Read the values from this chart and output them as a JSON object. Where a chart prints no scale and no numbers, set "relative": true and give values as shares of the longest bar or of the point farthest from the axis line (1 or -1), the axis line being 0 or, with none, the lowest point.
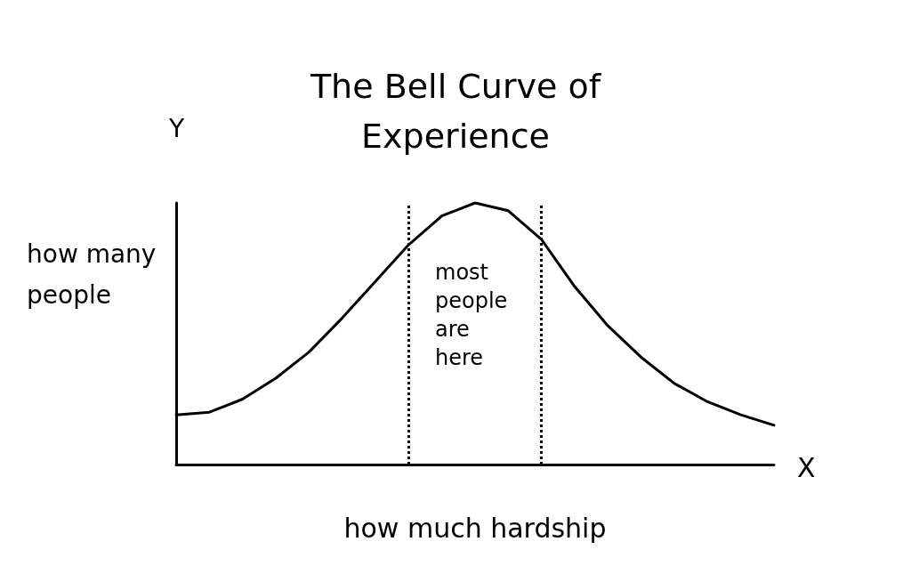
{
  "chart_data": {
    "type": "line",
    "title": "The Bell Curve of\nExperience",
    "xlabel": "how much hardship",
    "ylabel": "how many\npeople",
    "relative": true,
    "categories": [
      null,
      null,
      null,
      null,
      null,
      null,
      null,
      null,
      null,
      null,
      null,
      null,
      null,
      null,
      null,
      null,
      null,
      null,
      null
    ],
    "series": [
      {
        "color": "#000000",
        "values": [
          0.19,
          0.2,
          0.25,
          0.33,
          0.43,
          0.56,
          0.7,
          0.84,
          0.95,
          1.0,
          0.97,
          0.86,
          0.68,
          0.53,
          0.41,
          0.31,
          0.24,
          0.19,
          0.15
        ]
      }
    ],
    "annotations": [
      "most\npeople\nare\nhere",
      "Y",
      "X"
    ],
    "marker": "none",
    "line_style": "solid",
    "grid": false
  }
}
